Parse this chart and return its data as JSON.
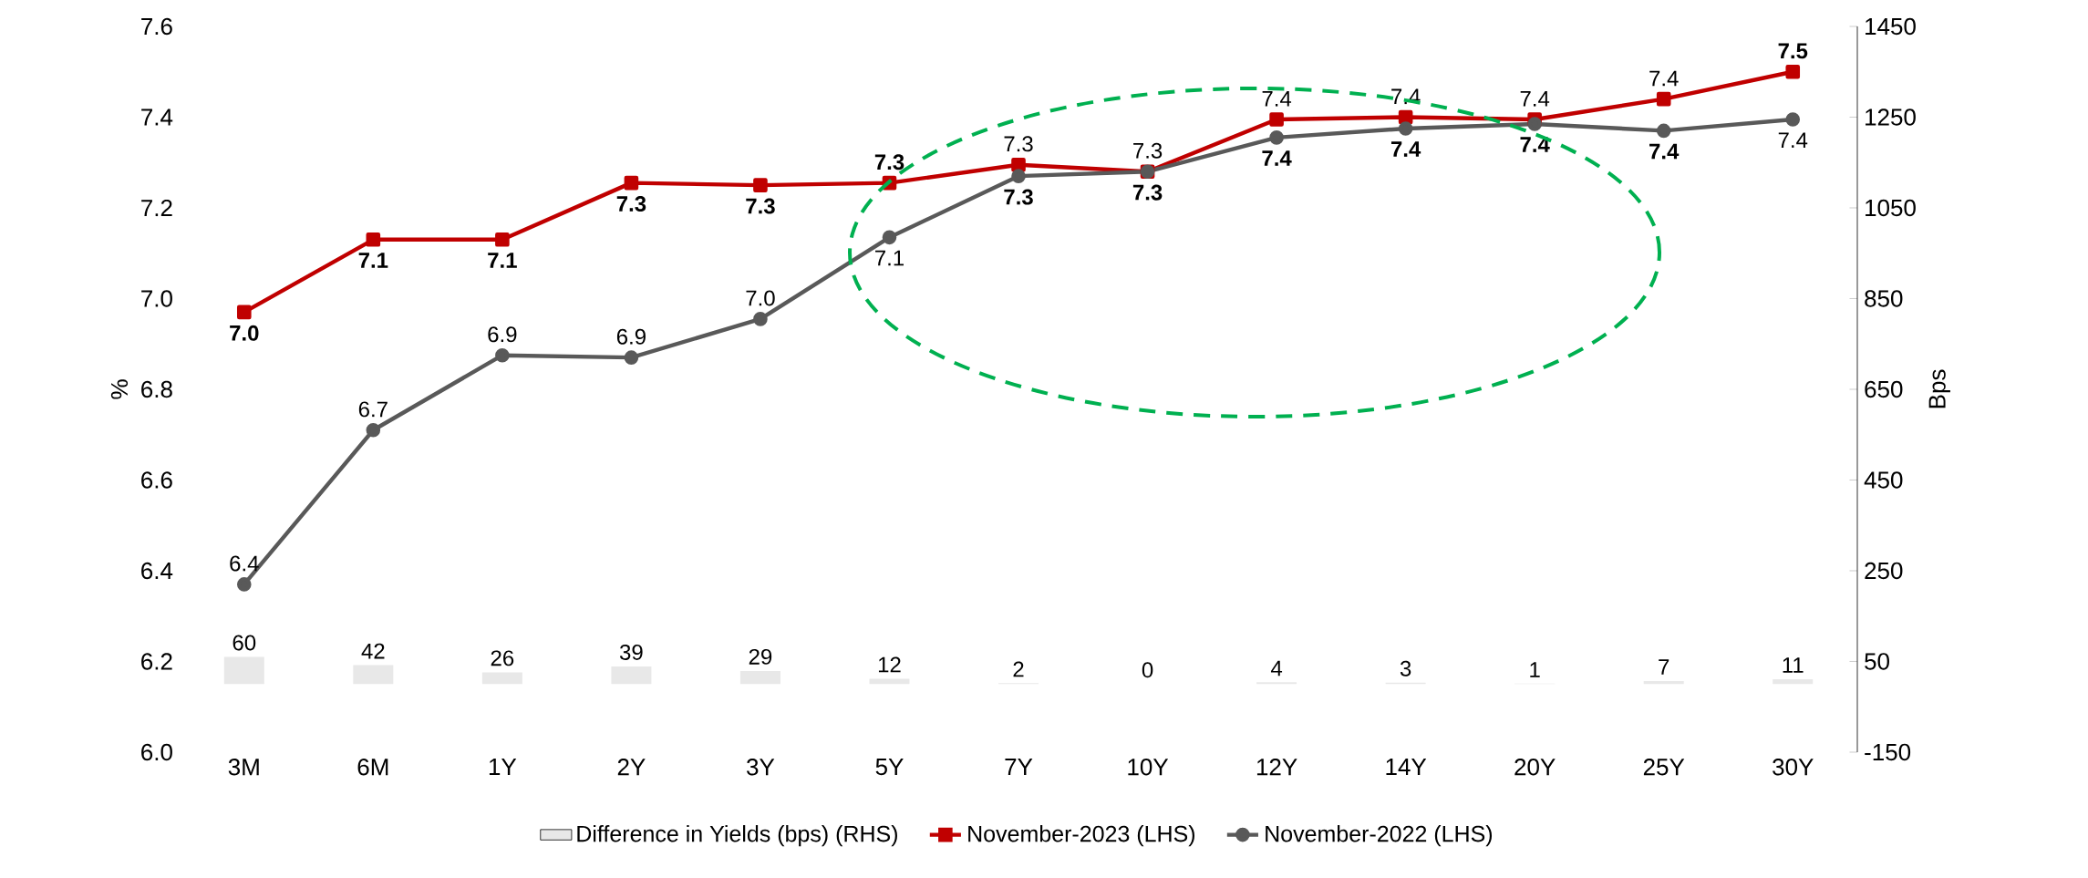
{
  "chart_data": {
    "type": "line",
    "categories": [
      "3M",
      "6M",
      "1Y",
      "2Y",
      "3Y",
      "5Y",
      "7Y",
      "10Y",
      "12Y",
      "14Y",
      "20Y",
      "25Y",
      "30Y"
    ],
    "ylabel": "%",
    "y2label": "Bps",
    "ylim": [
      6.0,
      7.6
    ],
    "yticks": [
      {
        "value": 6.0,
        "label": "6.0"
      },
      {
        "value": 6.2,
        "label": "6.2"
      },
      {
        "value": 6.4,
        "label": "6.4"
      },
      {
        "value": 6.6,
        "label": "6.6"
      },
      {
        "value": 6.8,
        "label": "6.8"
      },
      {
        "value": 7.0,
        "label": "7.0"
      },
      {
        "value": 7.2,
        "label": "7.2"
      },
      {
        "value": 7.4,
        "label": "7.4"
      },
      {
        "value": 7.6,
        "label": "7.6"
      }
    ],
    "y2lim": [
      -150,
      1450
    ],
    "y2ticks": [
      -150,
      50,
      250,
      450,
      650,
      850,
      1050,
      1250,
      1450
    ],
    "legend": "bottom",
    "series": [
      {
        "name": "Difference in Yields (bps) (RHS)",
        "type": "bar",
        "axis": "y2",
        "color": "#e8e8e8",
        "values": [
          60,
          42,
          26,
          39,
          29,
          12,
          2,
          0,
          4,
          3,
          1,
          7,
          11
        ],
        "value_labels": [
          "60",
          "42",
          "26",
          "39",
          "29",
          "12",
          "2",
          "0",
          "4",
          "3",
          "1",
          "7",
          "11"
        ]
      },
      {
        "name": "November-2023 (LHS)",
        "color": "#c00000",
        "marker": "square",
        "values": [
          6.97,
          7.13,
          7.13,
          7.255,
          7.25,
          7.255,
          7.295,
          7.28,
          7.395,
          7.4,
          7.395,
          7.44,
          7.5
        ],
        "value_labels": [
          "7.0",
          "7.1",
          "7.1",
          "7.3",
          "7.3",
          "7.3",
          "7.3",
          "7.3",
          "7.4",
          "7.4",
          "7.4",
          "7.4",
          "7.5"
        ]
      },
      {
        "name": "November-2022 (LHS)",
        "color": "#595959",
        "marker": "circle",
        "values": [
          6.37,
          6.71,
          6.875,
          6.87,
          6.955,
          7.135,
          7.27,
          7.28,
          7.355,
          7.375,
          7.385,
          7.37,
          7.395
        ],
        "value_labels": [
          "6.4",
          "6.7",
          "6.9",
          "6.9",
          "7.0",
          "7.1",
          "7.3",
          "7.3",
          "7.4",
          "7.4",
          "7.4",
          "7.4",
          "7.4"
        ]
      }
    ]
  }
}
